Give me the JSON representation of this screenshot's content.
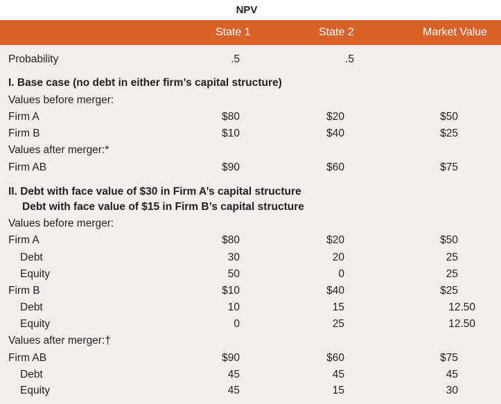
{
  "title": "NPV",
  "header": {
    "state1": "State 1",
    "state2": "State 2",
    "market": "Market Value"
  },
  "probability": {
    "label": "Probability",
    "s1": ".5",
    "s2": ".5"
  },
  "section1": {
    "title": "I. Base case (no debt in either firm’s capital structure)",
    "before_label": "Values before merger:",
    "firmA": {
      "label": "Firm A",
      "s1": "$80",
      "s2": "$20",
      "mv": "$50"
    },
    "firmB": {
      "label": "Firm B",
      "s1": "$10",
      "s2": "$40",
      "mv": "$25"
    },
    "after_label": "Values after merger:*",
    "firmAB": {
      "label": "Firm AB",
      "s1": "$90",
      "s2": "$60",
      "mv": "$75"
    }
  },
  "section2": {
    "title1": "II. Debt with face value of $30 in Firm A’s capital structure",
    "title2": "Debt with face value of $15 in Firm B’s capital structure",
    "before_label": "Values before merger:",
    "firmA": {
      "label": "Firm A",
      "s1": "$80",
      "s2": "$20",
      "mv": "$50"
    },
    "firmA_debt": {
      "label": "Debt",
      "s1": "30",
      "s2": "20",
      "mv": "25"
    },
    "firmA_equity": {
      "label": "Equity",
      "s1": "50",
      "s2": "0",
      "mv": "25"
    },
    "firmB": {
      "label": "Firm B",
      "s1": "$10",
      "s2": "$40",
      "mv": "$25"
    },
    "firmB_debt": {
      "label": "Debt",
      "s1": "10",
      "s2": "15",
      "mv": "12.50"
    },
    "firmB_equity": {
      "label": "Equity",
      "s1": "0",
      "s2": "25",
      "mv": "12.50"
    },
    "after_label": "Values after merger:†",
    "firmAB": {
      "label": "Firm AB",
      "s1": "$90",
      "s2": "$60",
      "mv": "$75"
    },
    "firmAB_debt": {
      "label": "Debt",
      "s1": "45",
      "s2": "45",
      "mv": "45"
    },
    "firmAB_equity": {
      "label": "Equity",
      "s1": "45",
      "s2": "15",
      "mv": "30"
    }
  },
  "colors": {
    "header_bg": "#d9622b",
    "body_bg": "#f1eeec"
  }
}
